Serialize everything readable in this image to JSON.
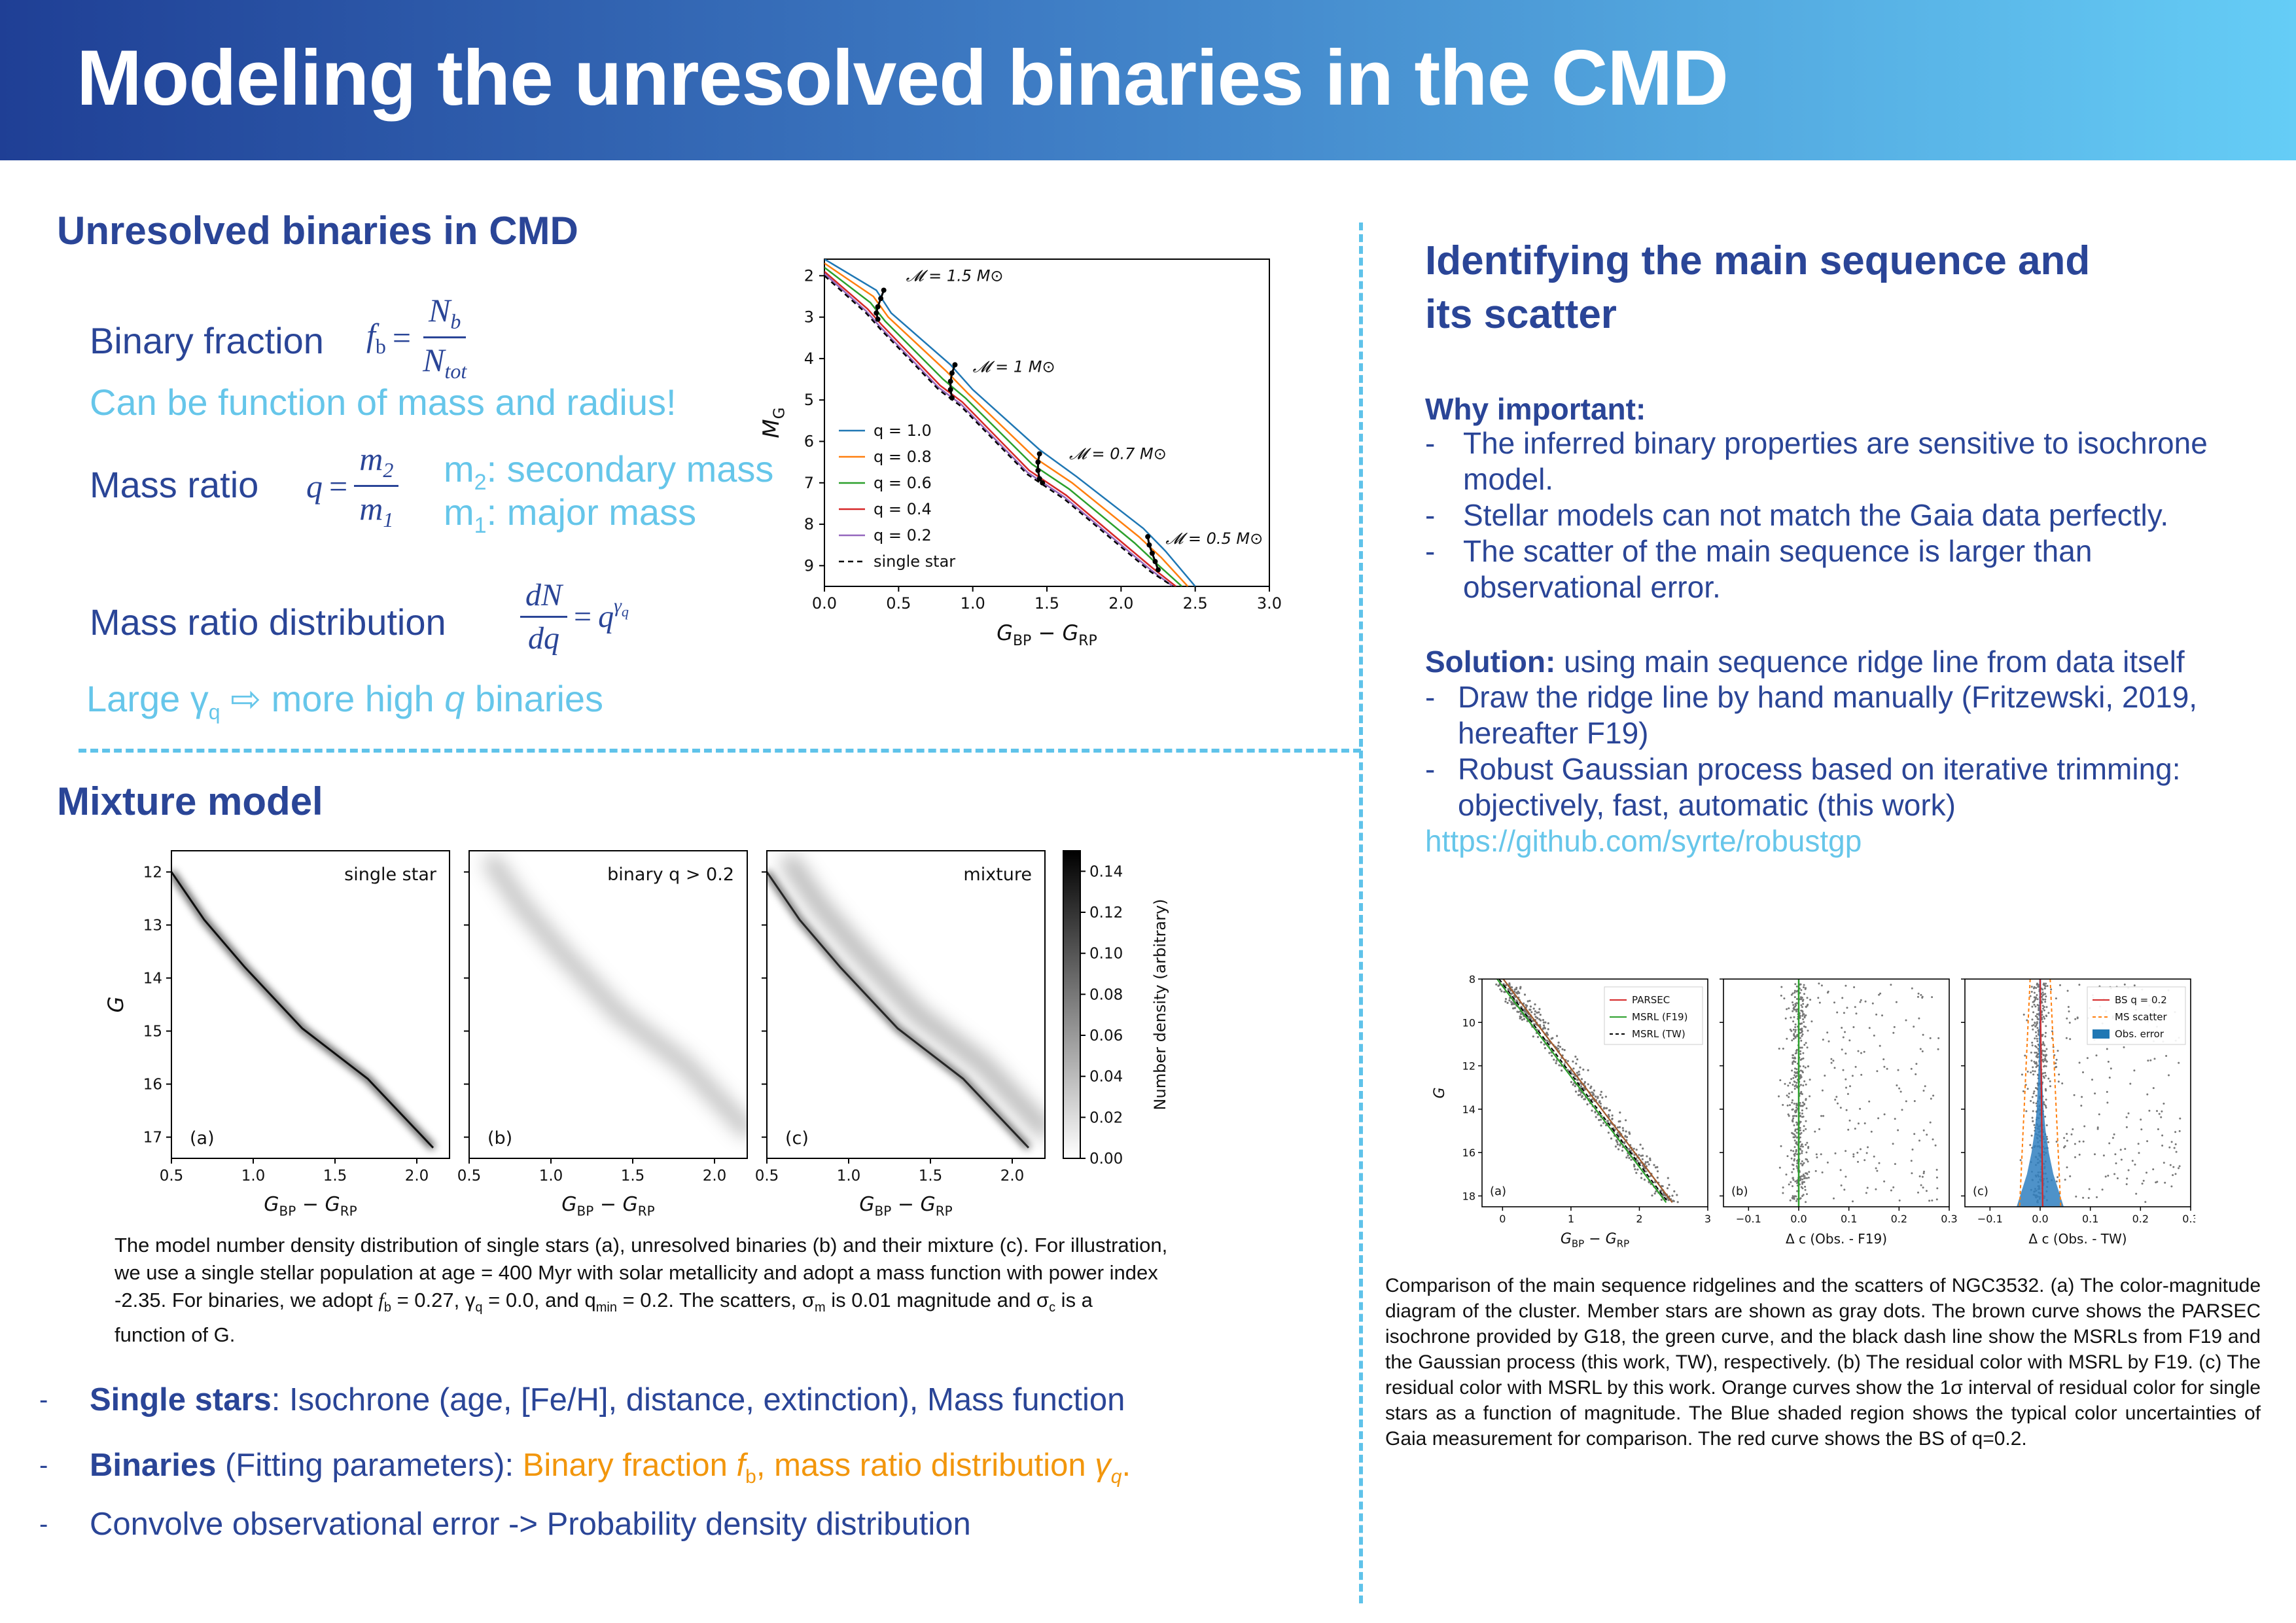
{
  "header": {
    "title": "Modeling the unresolved binaries in the CMD"
  },
  "left": {
    "unresolved": {
      "title": "Unresolved binaries in CMD",
      "binary_fraction_label": "Binary fraction",
      "fb_formula": {
        "lhs": "f",
        "lhs_sub": "b",
        "num": "N",
        "num_sub": "b",
        "den": "N",
        "den_sub": "tot"
      },
      "binary_fraction_note": "Can be function of mass and radius!",
      "mass_ratio_label": "Mass ratio",
      "q_formula": {
        "lhs": "q",
        "num": "m",
        "num_sub": "2",
        "den": "m",
        "den_sub": "1"
      },
      "m2_desc": ": secondary mass",
      "m1_desc": ": major mass",
      "m2_sym": "m",
      "m2_sub": "2",
      "m1_sym": "m",
      "m1_sub": "1",
      "mrd_label": "Mass ratio distribution",
      "mrd_formula": {
        "num": "dN",
        "den": "dq",
        "rhs": "q",
        "rhs_sup": "γ",
        "rhs_sup_sub": "q"
      },
      "large_gamma_text_1": "Large γ",
      "large_gamma_sub": "q",
      "large_gamma_arrow": "⇨",
      "large_gamma_text_2": " more high ",
      "large_gamma_q": "q",
      "large_gamma_text_3": " binaries"
    },
    "mixture": {
      "title": "Mixture model",
      "caption_1": "The model number density distribution of single stars (a), unresolved binaries (b) and their mixture (c). For illustration,",
      "caption_2": "we use a single stellar population at age = 400 Myr with solar metallicity and adopt a mass function with power index",
      "caption_3a": "-2.35. For binaries, we adopt ",
      "caption_3_fb": "f",
      "caption_3_fb_sub": "b",
      "caption_3b": " = 0.27, γ",
      "caption_3_q_sub": "q",
      "caption_3c": " = 0.0, and q",
      "caption_3_min_sub": "min",
      "caption_3d": " = 0.2. The scatters, σ",
      "caption_3_m_sub": "m",
      "caption_3e": " is 0.01 magnitude and σ",
      "caption_3_c_sub": "c",
      "caption_3f": " is a",
      "caption_4": "function of G.",
      "bullets": [
        {
          "bold": "Single stars",
          "rest": ": Isochrone (age, [Fe/H], distance, extinction), Mass function"
        },
        {
          "bold": "Binaries",
          "rest": " (Fitting parameters): ",
          "orange_1": "Binary fraction ",
          "orange_fb": "f",
          "orange_fb_sub": "b",
          "orange_2": ", mass ratio distribution ",
          "orange_gamma": "γ",
          "orange_gamma_sub": "q",
          "orange_3": "."
        },
        {
          "bold": "",
          "rest": "Convolve observational error -> Probability density distribution"
        }
      ],
      "dash": "-"
    }
  },
  "right": {
    "title_1": "Identifying the main sequence and",
    "title_2": "its scatter",
    "why_title": "Why important:",
    "why_items": [
      {
        "line1": "The inferred binary properties are sensitive to isochrone",
        "line2": "model."
      },
      {
        "line1": "Stellar models can not match the Gaia data perfectly.",
        "line2": ""
      },
      {
        "line1": "The scatter of the main sequence is larger than",
        "line2": "observational error."
      }
    ],
    "solution_bold": "Solution:",
    "solution_rest": " using main sequence ridge line from data itself",
    "solution_items": [
      {
        "line1": "Draw the ridge line by hand manually (Fritzewski, 2019,",
        "line2": "hereafter F19)"
      },
      {
        "line1": "Robust Gaussian process based on iterative trimming:",
        "line2": "objectively, fast, automatic (this work)"
      }
    ],
    "link": "https://github.com/syrte/robustgp",
    "caption": "Comparison of the main sequence ridgelines and the scatters of NGC3532. (a) The color-magnitude diagram of the cluster. Member stars are shown as gray dots. The brown curve shows the PARSEC isochrone provided by G18, the green curve, and the black dash line show the MSRLs from F19 and the Gaussian process (this work, TW), respectively. (b) The residual color with MSRL by F19. (c) The residual color with MSRL by this work. Orange curves show the 1σ interval of residual color for single stars as a function of magnitude. The Blue shaded region shows the typical color uncertainties of Gaia measurement for comparison. The red curve shows the BS of q=0.2."
  },
  "chart_data": [
    {
      "type": "line",
      "id": "binary-sequence-cmd",
      "xlabel": "G_BP − G_RP",
      "ylabel": "M_G",
      "xlim": [
        0.0,
        3.0
      ],
      "ylim": [
        9.5,
        1.6
      ],
      "xticks": [
        "0.0",
        "0.5",
        "1.0",
        "1.5",
        "2.0",
        "2.5",
        "3.0"
      ],
      "yticks": [
        "2",
        "3",
        "4",
        "5",
        "6",
        "7",
        "8",
        "9"
      ],
      "legend_position": "lower-left",
      "series": [
        {
          "name": "q = 1.0",
          "color": "#1f77b4",
          "x": [
            0.0,
            0.35,
            0.45,
            0.85,
            1.0,
            1.45,
            1.7,
            2.15,
            2.3,
            2.5
          ],
          "y": [
            1.6,
            2.35,
            2.9,
            4.15,
            4.75,
            6.2,
            6.85,
            8.1,
            8.65,
            9.5
          ]
        },
        {
          "name": "q = 0.8",
          "color": "#ff7f0e",
          "x": [
            0.0,
            0.33,
            0.43,
            0.82,
            0.97,
            1.42,
            1.67,
            2.12,
            2.27,
            2.45
          ],
          "y": [
            1.7,
            2.5,
            3.0,
            4.3,
            4.85,
            6.4,
            7.0,
            8.3,
            8.8,
            9.5
          ]
        },
        {
          "name": "q = 0.6",
          "color": "#2ca02c",
          "x": [
            0.0,
            0.31,
            0.41,
            0.8,
            0.95,
            1.4,
            1.65,
            2.09,
            2.24,
            2.41
          ],
          "y": [
            1.8,
            2.65,
            3.1,
            4.5,
            4.95,
            6.55,
            7.15,
            8.45,
            8.95,
            9.5
          ]
        },
        {
          "name": "q = 0.4",
          "color": "#d62728",
          "x": [
            0.0,
            0.29,
            0.39,
            0.78,
            0.93,
            1.38,
            1.63,
            2.06,
            2.21,
            2.37
          ],
          "y": [
            1.9,
            2.8,
            3.2,
            4.65,
            5.05,
            6.7,
            7.3,
            8.6,
            9.05,
            9.5
          ]
        },
        {
          "name": "q = 0.2",
          "color": "#9467bd",
          "x": [
            0.0,
            0.28,
            0.38,
            0.77,
            0.92,
            1.37,
            1.62,
            2.05,
            2.2,
            2.35
          ],
          "y": [
            1.95,
            2.85,
            3.25,
            4.7,
            5.1,
            6.75,
            7.35,
            8.65,
            9.1,
            9.5
          ]
        },
        {
          "name": "single star",
          "color": "#000000",
          "dashed": true,
          "x": [
            0.0,
            0.28,
            0.38,
            0.77,
            0.92,
            1.37,
            1.62,
            2.05,
            2.2,
            2.35
          ],
          "y": [
            2.0,
            2.9,
            3.3,
            4.75,
            5.15,
            6.8,
            7.4,
            8.7,
            9.15,
            9.5
          ]
        }
      ],
      "annotations": [
        {
          "text": "𝓜 = 1.5 M⊙",
          "x": 0.55,
          "y": 2.0
        },
        {
          "text": "𝓜 = 1 M⊙",
          "x": 1.0,
          "y": 4.2
        },
        {
          "text": "𝓜 = 0.7 M⊙",
          "x": 1.65,
          "y": 6.3
        },
        {
          "text": "𝓜 = 0.5 M⊙",
          "x": 2.3,
          "y": 8.35
        }
      ],
      "mass_points": [
        {
          "x": [
            0.4,
            0.38,
            0.36,
            0.35,
            0.36
          ],
          "y": [
            2.35,
            2.55,
            2.75,
            2.9,
            3.05
          ]
        },
        {
          "x": [
            0.88,
            0.86,
            0.85,
            0.85,
            0.86
          ],
          "y": [
            4.15,
            4.35,
            4.55,
            4.75,
            4.95
          ]
        },
        {
          "x": [
            1.45,
            1.44,
            1.44,
            1.45,
            1.47
          ],
          "y": [
            6.3,
            6.5,
            6.7,
            6.9,
            7.0
          ]
        },
        {
          "x": [
            2.18,
            2.19,
            2.21,
            2.23,
            2.25
          ],
          "y": [
            8.3,
            8.5,
            8.7,
            8.9,
            9.1
          ]
        }
      ]
    },
    {
      "type": "heatmap",
      "id": "mixture-model-panels",
      "panels": [
        {
          "label": "(a)",
          "title": "single star",
          "intensity": 1.0,
          "binary_band": 0.0
        },
        {
          "label": "(b)",
          "title": "binary q > 0.2",
          "intensity": 0.0,
          "binary_band": 0.25
        },
        {
          "label": "(c)",
          "title": "mixture",
          "intensity": 0.85,
          "binary_band": 0.3
        }
      ],
      "xlabel": "G_BP − G_RP",
      "ylabel": "G",
      "xlim": [
        0.5,
        2.2
      ],
      "ylim": [
        17.4,
        11.6
      ],
      "xticks": [
        "0.5",
        "1.0",
        "1.5",
        "2.0"
      ],
      "yticks": [
        "12",
        "13",
        "14",
        "15",
        "16",
        "17"
      ],
      "ridge": {
        "x": [
          0.5,
          0.7,
          0.95,
          1.3,
          1.7,
          2.1
        ],
        "y": [
          12.0,
          12.9,
          13.8,
          14.95,
          15.9,
          17.2
        ]
      },
      "colorbar": {
        "label": "Number density (arbitrary)",
        "ticks": [
          "0.00",
          "0.02",
          "0.04",
          "0.06",
          "0.08",
          "0.10",
          "0.12",
          "0.14"
        ],
        "max": 0.15
      }
    },
    {
      "type": "scatter",
      "id": "ngc3532-panels",
      "panels": [
        {
          "label": "(a)",
          "xlabel": "G_BP − G_RP",
          "xlim": [
            -0.3,
            3.0
          ],
          "xticks": [
            "0",
            "1",
            "2",
            "3"
          ],
          "legend": [
            {
              "name": "PARSEC",
              "color": "#d62728"
            },
            {
              "name": "MSRL (F19)",
              "color": "#2ca02c"
            },
            {
              "name": "MSRL (TW)",
              "color": "#000000",
              "dashed": true
            }
          ]
        },
        {
          "label": "(b)",
          "xlabel": "Δ c (Obs. - F19)",
          "xlim": [
            -0.15,
            0.3
          ],
          "xticks": [
            "−0.1",
            "0.0",
            "0.1",
            "0.2",
            "0.3"
          ]
        },
        {
          "label": "(c)",
          "xlabel": "Δ c (Obs. - TW)",
          "xlim": [
            -0.15,
            0.3
          ],
          "xticks": [
            "−0.1",
            "0.0",
            "0.1",
            "0.2",
            "0.3"
          ],
          "legend": [
            {
              "name": "BS q = 0.2",
              "color": "#d62728"
            },
            {
              "name": "MS scatter",
              "color": "#ff7f0e",
              "dashed": true
            },
            {
              "name": "Obs. error",
              "color": "#1f77b4",
              "patch": true
            }
          ]
        }
      ],
      "ylabel": "G",
      "ylim": [
        18.5,
        8
      ],
      "yticks": [
        "8",
        "10",
        "12",
        "14",
        "16",
        "18"
      ]
    }
  ]
}
